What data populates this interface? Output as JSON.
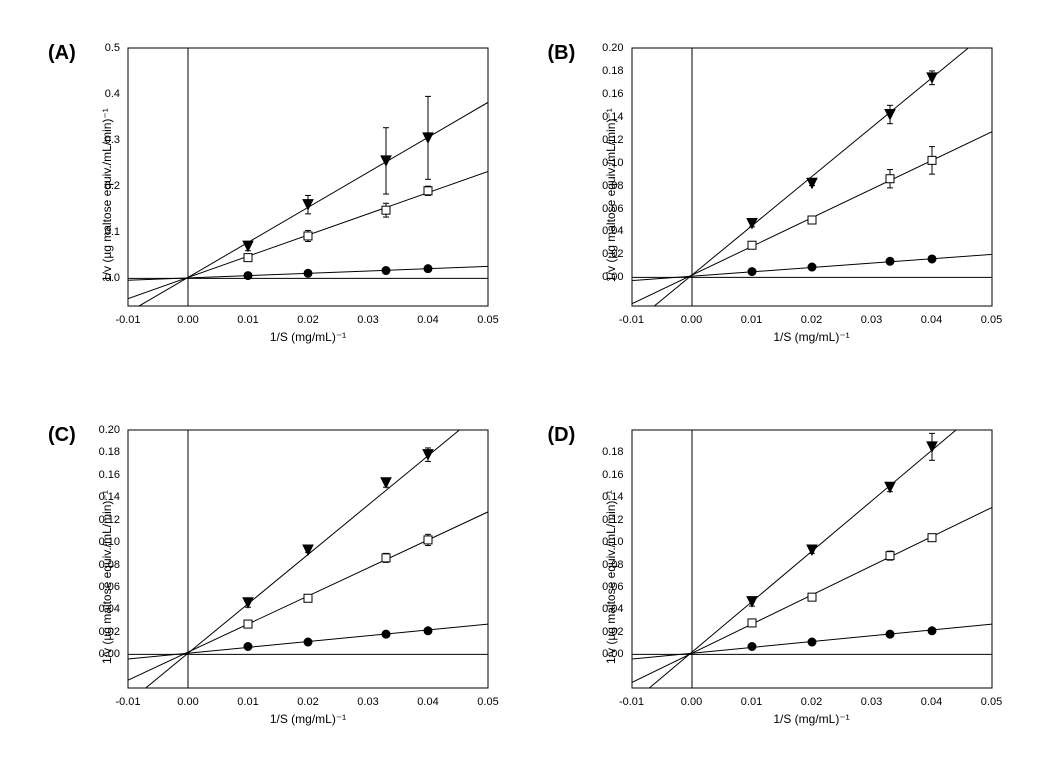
{
  "figure": {
    "background_color": "#ffffff",
    "panel_label_fontsize": 20,
    "panel_label_fontweight": 700,
    "axis_label_fontsize": 12,
    "tick_label_fontsize": 11,
    "text_color": "#000000",
    "xlabel": "1/S (mg/mL)⁻¹",
    "ylabel": "1/v (µg maltose equiv./mL/min)⁻¹",
    "panels": {
      "A": {
        "label": "(A)",
        "xlim": [
          -0.01,
          0.05
        ],
        "xticks": [
          -0.01,
          0.0,
          0.01,
          0.02,
          0.03,
          0.04,
          0.05
        ],
        "ylim": [
          -0.06,
          0.5
        ],
        "yticks": [
          0.0,
          0.1,
          0.2,
          0.3,
          0.4,
          0.5
        ],
        "grid": false,
        "axis_color": "#000000",
        "zero_line_color": "#000000",
        "series": [
          {
            "marker": "circle",
            "marker_fill": "#000000",
            "marker_stroke": "#000000",
            "marker_size": 4,
            "line_color": "#000000",
            "line_width": 1,
            "fit": {
              "slope": 0.5,
              "intercept": 0.001
            },
            "points": [
              {
                "x": 0.01,
                "y": 0.006,
                "err": 0.002
              },
              {
                "x": 0.02,
                "y": 0.011,
                "err": 0.002
              },
              {
                "x": 0.033,
                "y": 0.017,
                "err": 0.002
              },
              {
                "x": 0.04,
                "y": 0.021,
                "err": 0.002
              }
            ]
          },
          {
            "marker": "square",
            "marker_fill": "#ffffff",
            "marker_stroke": "#000000",
            "marker_size": 4,
            "line_color": "#000000",
            "line_width": 1,
            "fit": {
              "slope": 4.6,
              "intercept": 0.002
            },
            "points": [
              {
                "x": 0.01,
                "y": 0.045,
                "err": 0.005
              },
              {
                "x": 0.02,
                "y": 0.092,
                "err": 0.012
              },
              {
                "x": 0.033,
                "y": 0.148,
                "err": 0.015
              },
              {
                "x": 0.04,
                "y": 0.19,
                "err": 0.01
              }
            ]
          },
          {
            "marker": "triangle-down",
            "marker_fill": "#000000",
            "marker_stroke": "#000000",
            "marker_size": 5,
            "line_color": "#000000",
            "line_width": 1,
            "fit": {
              "slope": 7.6,
              "intercept": 0.002
            },
            "points": [
              {
                "x": 0.01,
                "y": 0.07,
                "err": 0.01
              },
              {
                "x": 0.02,
                "y": 0.16,
                "err": 0.02
              },
              {
                "x": 0.033,
                "y": 0.255,
                "err": 0.072
              },
              {
                "x": 0.04,
                "y": 0.305,
                "err": 0.09
              }
            ]
          }
        ]
      },
      "B": {
        "label": "(B)",
        "xlim": [
          -0.01,
          0.05
        ],
        "xticks": [
          -0.01,
          0.0,
          0.01,
          0.02,
          0.03,
          0.04,
          0.05
        ],
        "ylim": [
          -0.025,
          0.2
        ],
        "yticks": [
          0.0,
          0.02,
          0.04,
          0.06,
          0.08,
          0.1,
          0.12,
          0.14,
          0.16,
          0.18,
          0.2
        ],
        "grid": false,
        "axis_color": "#000000",
        "zero_line_color": "#000000",
        "series": [
          {
            "marker": "circle",
            "marker_fill": "#000000",
            "marker_stroke": "#000000",
            "marker_size": 4,
            "line_color": "#000000",
            "line_width": 1,
            "fit": {
              "slope": 0.38,
              "intercept": 0.001
            },
            "points": [
              {
                "x": 0.01,
                "y": 0.005,
                "err": 0.001
              },
              {
                "x": 0.02,
                "y": 0.009,
                "err": 0.001
              },
              {
                "x": 0.033,
                "y": 0.014,
                "err": 0.001
              },
              {
                "x": 0.04,
                "y": 0.016,
                "err": 0.001
              }
            ]
          },
          {
            "marker": "square",
            "marker_fill": "#ffffff",
            "marker_stroke": "#000000",
            "marker_size": 4,
            "line_color": "#000000",
            "line_width": 1,
            "fit": {
              "slope": 2.5,
              "intercept": 0.002
            },
            "points": [
              {
                "x": 0.01,
                "y": 0.028,
                "err": 0.002
              },
              {
                "x": 0.02,
                "y": 0.05,
                "err": 0.003
              },
              {
                "x": 0.033,
                "y": 0.086,
                "err": 0.008
              },
              {
                "x": 0.04,
                "y": 0.102,
                "err": 0.012
              }
            ]
          },
          {
            "marker": "triangle-down",
            "marker_fill": "#000000",
            "marker_stroke": "#000000",
            "marker_size": 5,
            "line_color": "#000000",
            "line_width": 1,
            "fit": {
              "slope": 4.3,
              "intercept": 0.002
            },
            "points": [
              {
                "x": 0.01,
                "y": 0.047,
                "err": 0.003
              },
              {
                "x": 0.02,
                "y": 0.082,
                "err": 0.002
              },
              {
                "x": 0.033,
                "y": 0.142,
                "err": 0.008
              },
              {
                "x": 0.04,
                "y": 0.174,
                "err": 0.006
              }
            ]
          }
        ]
      },
      "C": {
        "label": "(C)",
        "xlim": [
          -0.01,
          0.05
        ],
        "xticks": [
          -0.01,
          0.0,
          0.01,
          0.02,
          0.03,
          0.04,
          0.05
        ],
        "ylim": [
          -0.03,
          0.2
        ],
        "yticks": [
          0.0,
          0.02,
          0.04,
          0.06,
          0.08,
          0.1,
          0.12,
          0.14,
          0.16,
          0.18,
          0.2
        ],
        "grid": false,
        "axis_color": "#000000",
        "zero_line_color": "#000000",
        "series": [
          {
            "marker": "circle",
            "marker_fill": "#000000",
            "marker_stroke": "#000000",
            "marker_size": 4,
            "line_color": "#000000",
            "line_width": 1,
            "fit": {
              "slope": 0.52,
              "intercept": 0.001
            },
            "points": [
              {
                "x": 0.01,
                "y": 0.007,
                "err": 0.001
              },
              {
                "x": 0.02,
                "y": 0.011,
                "err": 0.001
              },
              {
                "x": 0.033,
                "y": 0.018,
                "err": 0.001
              },
              {
                "x": 0.04,
                "y": 0.021,
                "err": 0.001
              }
            ]
          },
          {
            "marker": "square",
            "marker_fill": "#ffffff",
            "marker_stroke": "#000000",
            "marker_size": 4,
            "line_color": "#000000",
            "line_width": 1,
            "fit": {
              "slope": 2.5,
              "intercept": 0.002
            },
            "points": [
              {
                "x": 0.01,
                "y": 0.027,
                "err": 0.002
              },
              {
                "x": 0.02,
                "y": 0.05,
                "err": 0.002
              },
              {
                "x": 0.033,
                "y": 0.086,
                "err": 0.004
              },
              {
                "x": 0.04,
                "y": 0.102,
                "err": 0.005
              }
            ]
          },
          {
            "marker": "triangle-down",
            "marker_fill": "#000000",
            "marker_stroke": "#000000",
            "marker_size": 5,
            "line_color": "#000000",
            "line_width": 1,
            "fit": {
              "slope": 4.4,
              "intercept": 0.001
            },
            "points": [
              {
                "x": 0.01,
                "y": 0.046,
                "err": 0.004
              },
              {
                "x": 0.02,
                "y": 0.093,
                "err": 0.002
              },
              {
                "x": 0.033,
                "y": 0.153,
                "err": 0.004
              },
              {
                "x": 0.04,
                "y": 0.178,
                "err": 0.006
              }
            ]
          }
        ]
      },
      "D": {
        "label": "(D)",
        "xlim": [
          -0.01,
          0.05
        ],
        "xticks": [
          -0.01,
          0.0,
          0.01,
          0.02,
          0.03,
          0.04,
          0.05
        ],
        "ylim": [
          -0.03,
          0.2
        ],
        "yticks": [
          0.0,
          0.02,
          0.04,
          0.06,
          0.08,
          0.1,
          0.12,
          0.14,
          0.16,
          0.18
        ],
        "grid": false,
        "axis_color": "#000000",
        "zero_line_color": "#000000",
        "series": [
          {
            "marker": "circle",
            "marker_fill": "#000000",
            "marker_stroke": "#000000",
            "marker_size": 4,
            "line_color": "#000000",
            "line_width": 1,
            "fit": {
              "slope": 0.52,
              "intercept": 0.001
            },
            "points": [
              {
                "x": 0.01,
                "y": 0.007,
                "err": 0.001
              },
              {
                "x": 0.02,
                "y": 0.011,
                "err": 0.001
              },
              {
                "x": 0.033,
                "y": 0.018,
                "err": 0.001
              },
              {
                "x": 0.04,
                "y": 0.021,
                "err": 0.001
              }
            ]
          },
          {
            "marker": "square",
            "marker_fill": "#ffffff",
            "marker_stroke": "#000000",
            "marker_size": 4,
            "line_color": "#000000",
            "line_width": 1,
            "fit": {
              "slope": 2.6,
              "intercept": 0.001
            },
            "points": [
              {
                "x": 0.01,
                "y": 0.028,
                "err": 0.002
              },
              {
                "x": 0.02,
                "y": 0.051,
                "err": 0.003
              },
              {
                "x": 0.033,
                "y": 0.088,
                "err": 0.004
              },
              {
                "x": 0.04,
                "y": 0.104,
                "err": 0.003
              }
            ]
          },
          {
            "marker": "triangle-down",
            "marker_fill": "#000000",
            "marker_stroke": "#000000",
            "marker_size": 5,
            "line_color": "#000000",
            "line_width": 1,
            "fit": {
              "slope": 4.5,
              "intercept": 0.002
            },
            "points": [
              {
                "x": 0.01,
                "y": 0.047,
                "err": 0.004
              },
              {
                "x": 0.02,
                "y": 0.093,
                "err": 0.003
              },
              {
                "x": 0.033,
                "y": 0.149,
                "err": 0.004
              },
              {
                "x": 0.04,
                "y": 0.185,
                "err": 0.012
              }
            ]
          }
        ]
      }
    }
  }
}
